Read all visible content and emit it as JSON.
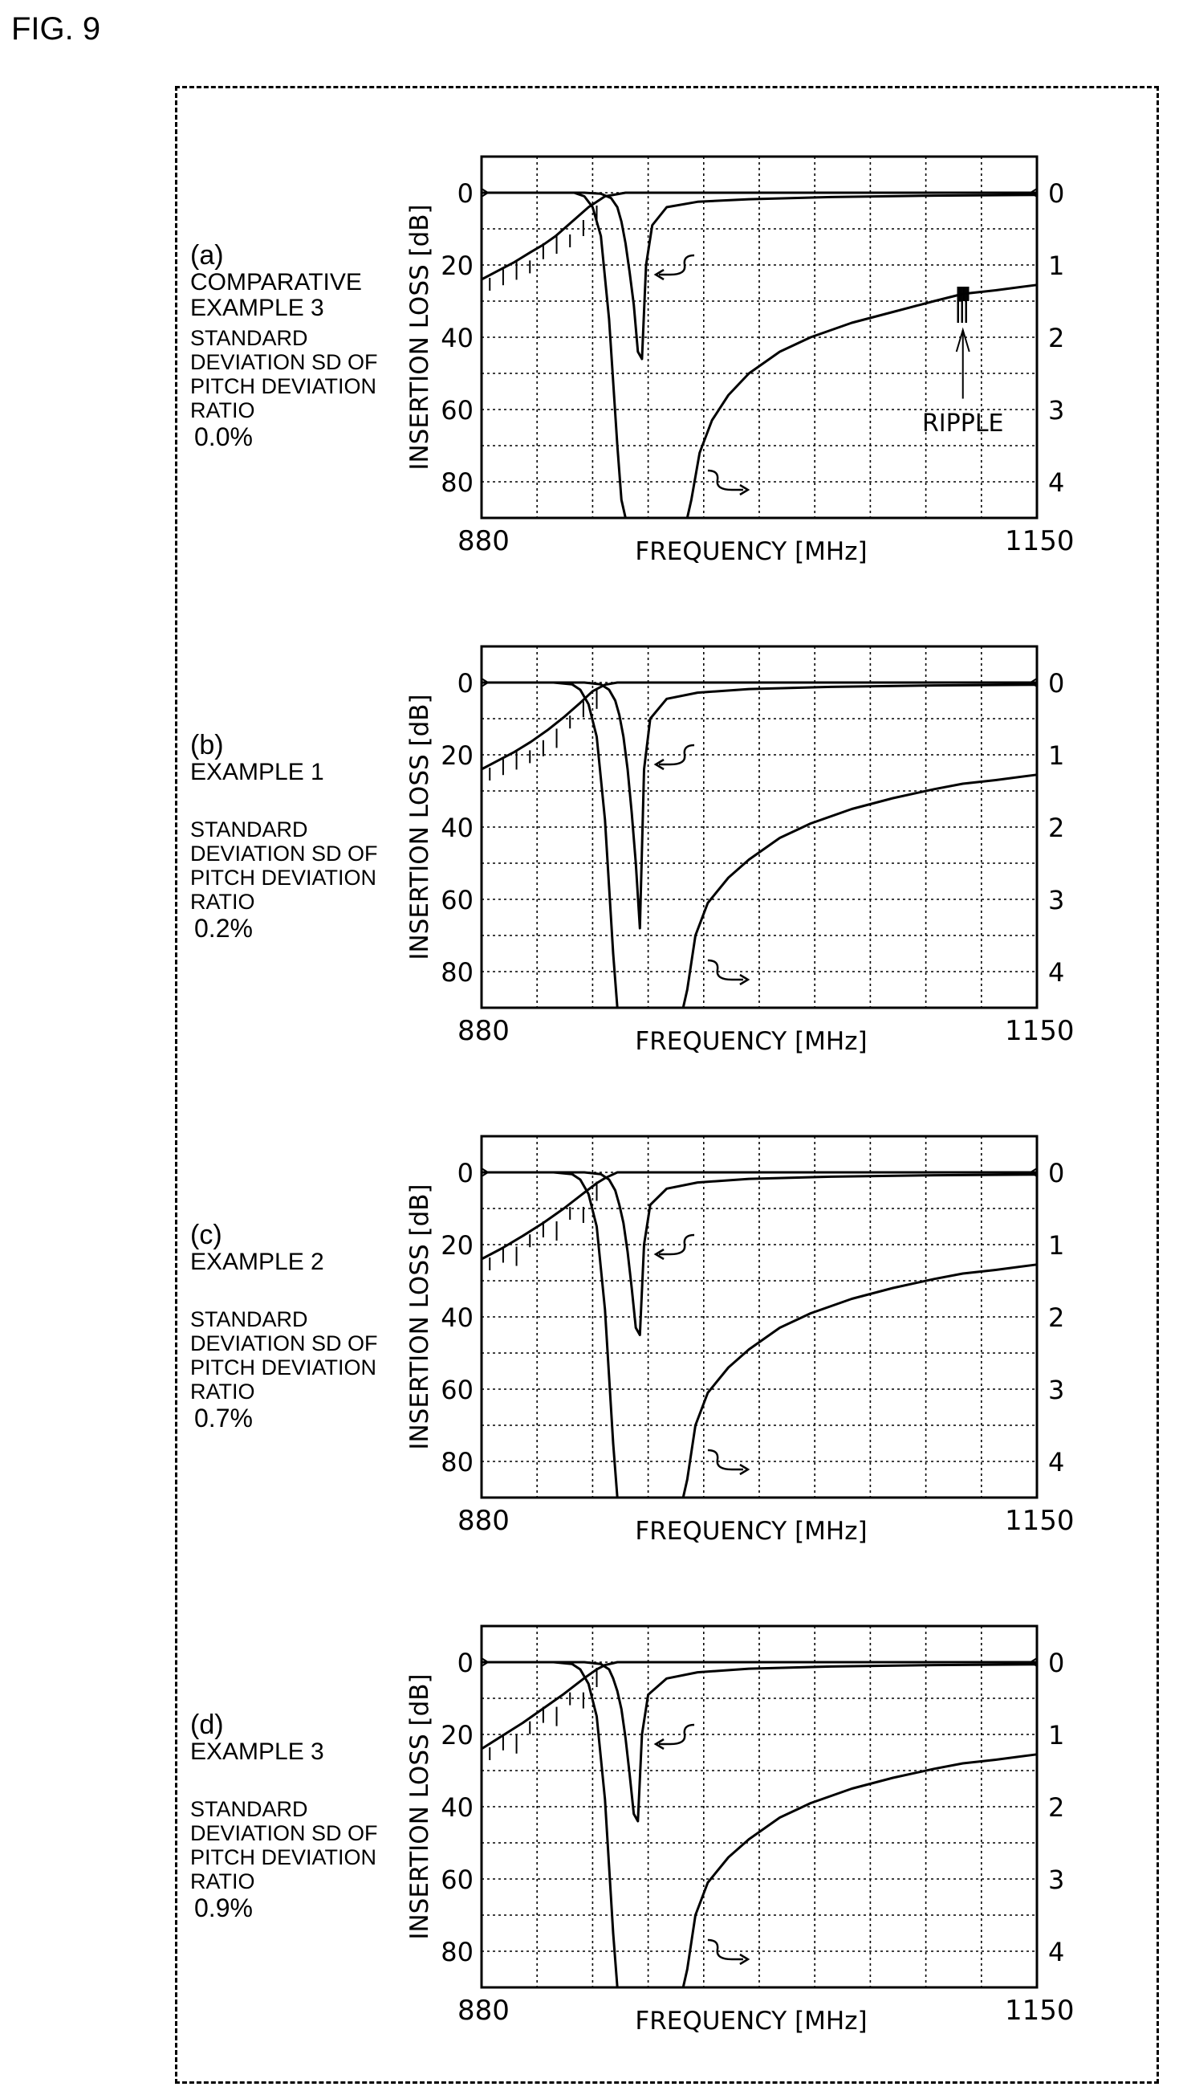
{
  "figure_label": "FIG. 9",
  "chart_data": [
    {
      "type": "line",
      "panel_label": "(a)",
      "name_lines": [
        "COMPARATIVE",
        "EXAMPLE 3"
      ],
      "sd_lines": [
        "STANDARD",
        "DEVIATION SD OF",
        "PITCH DEVIATION",
        "RATIO"
      ],
      "sd_value": "0.0%",
      "xlabel": "FREQUENCY [MHz]",
      "ylabel": "INSERTION LOSS [dB]",
      "xlim": [
        880,
        1150
      ],
      "xticks": [
        "880",
        "1150"
      ],
      "ylim_left": [
        90,
        -10
      ],
      "yticks_left": [
        "0",
        "20",
        "40",
        "60",
        "80"
      ],
      "ylim_right": [
        4.5,
        -0.5
      ],
      "yticks_right": [
        "0",
        "1",
        "2",
        "3",
        "4"
      ],
      "grid": true,
      "annotation": "RIPPLE",
      "series": [
        {
          "axis": "right",
          "x": [
            880,
            888,
            896,
            904,
            910,
            916,
            924,
            932,
            940,
            950,
            960,
            975,
            990,
            1010,
            1040,
            1070,
            1100,
            1112,
            1114,
            1116,
            1120,
            1135,
            1150
          ],
          "y": [
            1.2,
            1.08,
            0.96,
            0.82,
            0.72,
            0.6,
            0.4,
            0.2,
            0.05,
            0.0,
            0.0,
            0.0,
            0.0,
            0.0,
            0.0,
            0.0,
            0.0,
            0.0,
            0.0,
            0.0,
            0.0,
            0.0,
            0.0
          ]
        },
        {
          "axis": "left",
          "x": [
            880,
            910,
            930,
            938,
            943,
            946,
            948,
            950,
            952,
            954,
            956,
            958,
            960,
            963,
            970,
            985,
            1010,
            1050,
            1100,
            1150
          ],
          "y": [
            0,
            0,
            0,
            0.3,
            1.5,
            4,
            8,
            14,
            22,
            31,
            44,
            46,
            20,
            9,
            4,
            2.5,
            1.8,
            1.2,
            0.8,
            0.6
          ]
        },
        {
          "axis": "left",
          "x": [
            880,
            915,
            925,
            930,
            934,
            938,
            942,
            946,
            948,
            950,
            980,
            982,
            986,
            992,
            1000,
            1010,
            1025,
            1040,
            1060,
            1080,
            1100,
            1114,
            1130,
            1150
          ],
          "y": [
            0,
            0,
            0,
            1,
            4,
            12,
            35,
            70,
            85,
            90,
            90,
            85,
            72,
            63,
            56,
            50,
            44,
            40,
            36,
            33,
            30,
            28,
            27,
            25.5
          ]
        }
      ]
    },
    {
      "type": "line",
      "panel_label": "(b)",
      "name_lines": [
        "EXAMPLE 1"
      ],
      "sd_lines": [
        "STANDARD",
        "DEVIATION SD OF",
        "PITCH DEVIATION",
        "RATIO"
      ],
      "sd_value": "0.2%",
      "xlabel": "FREQUENCY [MHz]",
      "ylabel": "INSERTION LOSS [dB]",
      "xlim": [
        880,
        1150
      ],
      "xticks": [
        "880",
        "1150"
      ],
      "ylim_left": [
        90,
        -10
      ],
      "yticks_left": [
        "0",
        "20",
        "40",
        "60",
        "80"
      ],
      "ylim_right": [
        4.5,
        -0.5
      ],
      "yticks_right": [
        "0",
        "1",
        "2",
        "3",
        "4"
      ],
      "grid": true,
      "series": [
        {
          "axis": "right",
          "x": [
            880,
            888,
            896,
            904,
            912,
            920,
            928,
            934,
            940,
            946,
            960,
            1000,
            1050,
            1100,
            1150
          ],
          "y": [
            1.2,
            1.08,
            0.96,
            0.82,
            0.66,
            0.48,
            0.28,
            0.12,
            0.03,
            0.0,
            0.0,
            0.0,
            0.0,
            0.0,
            0.0
          ]
        },
        {
          "axis": "left",
          "x": [
            880,
            910,
            930,
            938,
            942,
            945,
            947,
            949,
            951,
            953,
            955,
            957,
            959,
            962,
            970,
            985,
            1010,
            1050,
            1100,
            1150
          ],
          "y": [
            0,
            0,
            0,
            0.5,
            2,
            5,
            9,
            15,
            24,
            36,
            50,
            68,
            24,
            10,
            4.5,
            2.8,
            1.8,
            1.2,
            0.8,
            0.6
          ]
        },
        {
          "axis": "left",
          "x": [
            880,
            915,
            924,
            928,
            932,
            936,
            940,
            944,
            946,
            978,
            980,
            984,
            990,
            1000,
            1010,
            1025,
            1040,
            1060,
            1080,
            1100,
            1114,
            1130,
            1150
          ],
          "y": [
            0,
            0,
            0.5,
            2,
            6,
            15,
            38,
            75,
            90,
            90,
            85,
            70,
            61,
            54,
            49,
            43,
            39,
            35,
            32,
            29.5,
            28,
            27,
            25.5
          ]
        }
      ]
    },
    {
      "type": "line",
      "panel_label": "(c)",
      "name_lines": [
        "EXAMPLE 2"
      ],
      "sd_lines": [
        "STANDARD",
        "DEVIATION SD OF",
        "PITCH DEVIATION",
        "RATIO"
      ],
      "sd_value": "0.7%",
      "xlabel": "FREQUENCY [MHz]",
      "ylabel": "INSERTION LOSS [dB]",
      "xlim": [
        880,
        1150
      ],
      "xticks": [
        "880",
        "1150"
      ],
      "ylim_left": [
        90,
        -10
      ],
      "yticks_left": [
        "0",
        "20",
        "40",
        "60",
        "80"
      ],
      "ylim_right": [
        4.5,
        -0.5
      ],
      "yticks_right": [
        "0",
        "1",
        "2",
        "3",
        "4"
      ],
      "grid": true,
      "series": [
        {
          "axis": "right",
          "x": [
            880,
            890,
            900,
            910,
            920,
            930,
            936,
            940,
            946,
            960,
            1000,
            1050,
            1100,
            1150
          ],
          "y": [
            1.2,
            1.05,
            0.88,
            0.7,
            0.5,
            0.28,
            0.15,
            0.08,
            0.0,
            0.0,
            0.0,
            0.0,
            0.0,
            0.0
          ]
        },
        {
          "axis": "left",
          "x": [
            880,
            910,
            930,
            938,
            942,
            945,
            947,
            949,
            951,
            953,
            955,
            957,
            959,
            962,
            970,
            985,
            1010,
            1050,
            1100,
            1150
          ],
          "y": [
            0,
            0,
            0,
            0.5,
            2,
            5,
            9,
            14,
            22,
            32,
            43,
            45,
            20,
            9,
            4.5,
            2.8,
            1.8,
            1.2,
            0.8,
            0.6
          ]
        },
        {
          "axis": "left",
          "x": [
            880,
            915,
            924,
            928,
            932,
            936,
            940,
            944,
            946,
            978,
            980,
            984,
            990,
            1000,
            1010,
            1025,
            1040,
            1060,
            1080,
            1100,
            1114,
            1130,
            1150
          ],
          "y": [
            0,
            0,
            0.5,
            2,
            6,
            15,
            38,
            75,
            90,
            90,
            85,
            70,
            61,
            54,
            49,
            43,
            39,
            35,
            32,
            29.5,
            28,
            27,
            25.5
          ]
        }
      ]
    },
    {
      "type": "line",
      "panel_label": "(d)",
      "name_lines": [
        "EXAMPLE 3"
      ],
      "sd_lines": [
        "STANDARD",
        "DEVIATION SD OF",
        "PITCH DEVIATION",
        "RATIO"
      ],
      "sd_value": "0.9%",
      "xlabel": "FREQUENCY [MHz]",
      "ylabel": "INSERTION LOSS [dB]",
      "xlim": [
        880,
        1150
      ],
      "xticks": [
        "880",
        "1150"
      ],
      "ylim_left": [
        90,
        -10
      ],
      "yticks_left": [
        "0",
        "20",
        "40",
        "60",
        "80"
      ],
      "ylim_right": [
        4.5,
        -0.5
      ],
      "yticks_right": [
        "0",
        "1",
        "2",
        "3",
        "4"
      ],
      "grid": true,
      "series": [
        {
          "axis": "right",
          "x": [
            880,
            890,
            900,
            910,
            920,
            930,
            936,
            940,
            946,
            960,
            1000,
            1050,
            1100,
            1150
          ],
          "y": [
            1.2,
            1.02,
            0.84,
            0.64,
            0.44,
            0.22,
            0.1,
            0.04,
            0.0,
            0.0,
            0.0,
            0.0,
            0.0,
            0.0
          ]
        },
        {
          "axis": "left",
          "x": [
            880,
            910,
            930,
            938,
            942,
            944,
            946,
            948,
            950,
            952,
            954,
            956,
            958,
            961,
            970,
            985,
            1010,
            1050,
            1100,
            1150
          ],
          "y": [
            0,
            0,
            0,
            0.5,
            2,
            4.5,
            8,
            13,
            21,
            31,
            42,
            44,
            20,
            9,
            4.5,
            2.8,
            1.8,
            1.2,
            0.8,
            0.6
          ]
        },
        {
          "axis": "left",
          "x": [
            880,
            915,
            924,
            928,
            932,
            936,
            940,
            944,
            946,
            978,
            980,
            984,
            990,
            1000,
            1010,
            1025,
            1040,
            1060,
            1080,
            1100,
            1114,
            1130,
            1150
          ],
          "y": [
            0,
            0,
            0.5,
            2,
            6,
            15,
            38,
            75,
            90,
            90,
            85,
            70,
            61,
            54,
            49,
            43,
            39,
            35,
            32,
            29.5,
            28,
            27,
            25.5
          ]
        }
      ]
    }
  ]
}
